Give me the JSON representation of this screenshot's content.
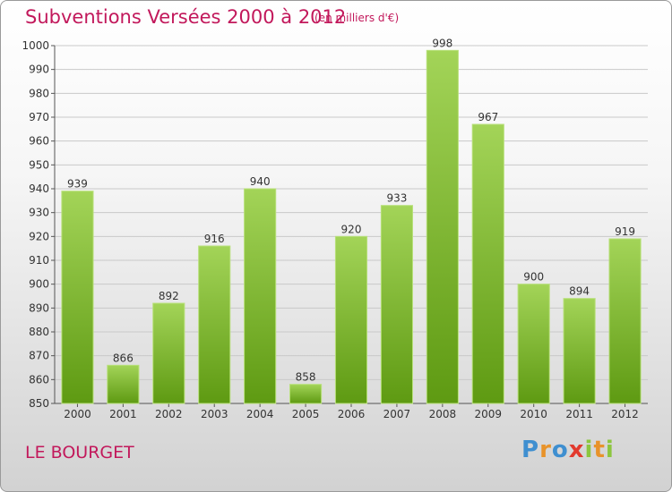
{
  "title": "Subventions Versées 2000 à 2012",
  "unit_note": "(en milliers d'€)",
  "location": "LE BOURGET",
  "logo": {
    "text": "Proxiti",
    "letters": [
      {
        "char": "P",
        "color": "#3f8fd0"
      },
      {
        "char": "r",
        "color": "#e8932a"
      },
      {
        "char": "o",
        "color": "#3f8fd0"
      },
      {
        "char": "x",
        "color": "#e23a2e"
      },
      {
        "char": "i",
        "color": "#8cc63f"
      },
      {
        "char": "t",
        "color": "#e8932a"
      },
      {
        "char": "i",
        "color": "#8cc63f"
      }
    ]
  },
  "colors": {
    "title": "#c2185b",
    "bar_light": "#a3d458",
    "bar_dark": "#5e9a12",
    "grid": "#c9c9c9",
    "axis": "#555555"
  },
  "chart_data": {
    "type": "bar",
    "categories": [
      "2000",
      "2001",
      "2002",
      "2003",
      "2004",
      "2005",
      "2006",
      "2007",
      "2008",
      "2009",
      "2010",
      "2011",
      "2012"
    ],
    "values": [
      939,
      866,
      892,
      916,
      940,
      858,
      920,
      933,
      998,
      967,
      900,
      894,
      919
    ],
    "ylim": [
      850,
      1000
    ],
    "yticks": [
      850,
      860,
      870,
      880,
      890,
      900,
      910,
      920,
      930,
      940,
      950,
      960,
      970,
      980,
      990,
      1000
    ],
    "grid": true,
    "title": "Subventions Versées 2000 à 2012",
    "xlabel": "",
    "ylabel": ""
  }
}
